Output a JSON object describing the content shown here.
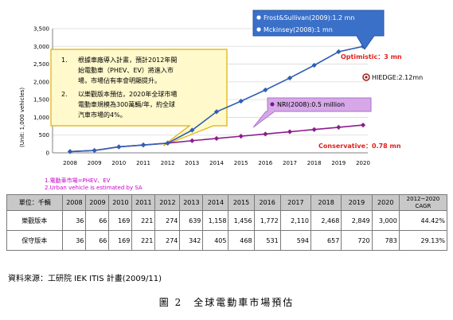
{
  "chart_data": {
    "type": "line",
    "ylabel": "(Unit: 1,000 vehicles)",
    "x": [
      "2008",
      "2009",
      "2010",
      "2011",
      "2012",
      "2013",
      "2014",
      "2015",
      "2016",
      "2017",
      "2018",
      "2019",
      "2020"
    ],
    "yticks": [
      "0",
      "500",
      "1,000",
      "1,500",
      "2,000",
      "2,500",
      "3,000",
      "3,500"
    ],
    "ylim": [
      0,
      3500
    ],
    "series": [
      {
        "name": "Optimistic",
        "color": "#2f5fb2",
        "values": [
          36,
          66,
          169,
          221,
          274,
          639,
          1158,
          1456,
          1772,
          2110,
          2468,
          2849,
          3000
        ]
      },
      {
        "name": "Conservative",
        "color": "#8b1d8b",
        "values": [
          36,
          66,
          169,
          221,
          274,
          342,
          405,
          468,
          531,
          594,
          657,
          720,
          783
        ]
      }
    ],
    "annotations": {
      "frost": "Frost&Sullivan(2009):1.2 mn",
      "mckinsey": "Mckinsey(2008):1 mn",
      "optimistic": "Optimistic：3 mn",
      "hiedge": "HIEDGE:2.12mn",
      "nri": "NRI(2008):0.5 million",
      "conservative": "Conservative：0.78 mn",
      "callout_1_num": "1.",
      "callout_1_lines": [
        "根據車廠導入計畫，預計2012年開",
        "始電動車（PHEV、EV）將進入市",
        "場，市場佔有率會明顯提升。"
      ],
      "callout_2_num": "2.",
      "callout_2_lines": [
        "以樂觀版本預估，2020年全球市場",
        "電動車規模為300萬輛/年，約全球",
        "汽車市場的4%。"
      ]
    },
    "colors": {
      "optimistic": "#2f5fb2",
      "conservative": "#8b1d8b",
      "red_text": "#e0201a",
      "callout_fill": "#fff9cc",
      "callout_border": "#e0b000",
      "blue_box": "#3a70c8",
      "purple_box": "#d6a8e8"
    }
  },
  "notes": {
    "note1": "1.電動車市場=PHEV、EV",
    "note2": "2.Urban vehicle is estimated by SA"
  },
  "table": {
    "headers": [
      "單位：千輛",
      "2008",
      "2009",
      "2010",
      "2011",
      "2012",
      "2013",
      "2014",
      "2015",
      "2016",
      "2017",
      "2018",
      "2019",
      "2020",
      "2012~2020 CAGR"
    ],
    "rows": [
      {
        "label": "樂觀版本",
        "cells": [
          "36",
          "66",
          "169",
          "221",
          "274",
          "639",
          "1,158",
          "1,456",
          "1,772",
          "2,110",
          "2,468",
          "2,849",
          "3,000",
          "44.42%"
        ]
      },
      {
        "label": "保守版本",
        "cells": [
          "36",
          "66",
          "169",
          "221",
          "274",
          "342",
          "405",
          "468",
          "531",
          "594",
          "657",
          "720",
          "783",
          "29.13%"
        ]
      }
    ]
  },
  "source": "資料來源：工研院 IEK ITIS 計畫(2009/11)",
  "caption": "圖 2　全球電動車市場預估"
}
